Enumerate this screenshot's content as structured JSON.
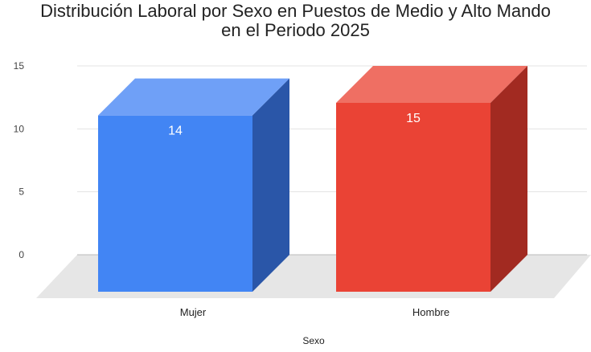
{
  "chart_data": {
    "type": "bar",
    "title_line1": "Distribución Laboral por Sexo en Puestos de Medio y Alto Mando",
    "title_line2": "en el Periodo 2025",
    "xlabel": "Sexo",
    "ylabel": "",
    "categories": [
      "Mujer",
      "Hombre"
    ],
    "values": [
      14,
      15
    ],
    "ylim": [
      0,
      15
    ],
    "yticks": [
      "0",
      "5",
      "10",
      "15"
    ],
    "grid": true,
    "legend": "none",
    "three_d": true,
    "colors": {
      "Mujer": {
        "front": "#4285f4",
        "top": "#6fa0f7",
        "side": "#2a56a8"
      },
      "Hombre": {
        "front": "#ea4335",
        "top": "#ef6f63",
        "side": "#a22a21"
      }
    }
  }
}
